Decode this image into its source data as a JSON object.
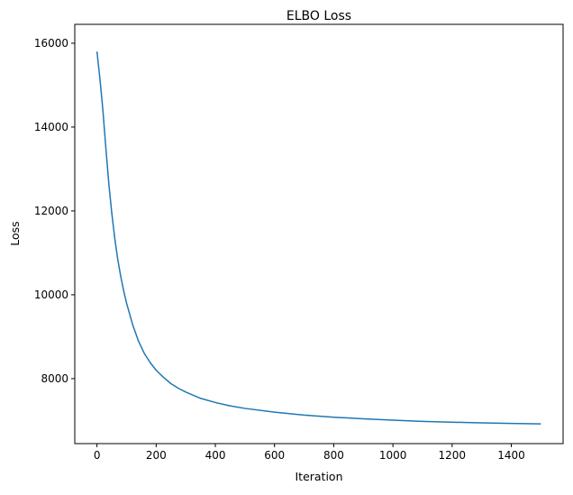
{
  "chart_data": {
    "type": "line",
    "title": "ELBO Loss",
    "xlabel": "Iteration",
    "ylabel": "Loss",
    "xlim": [
      -75,
      1575
    ],
    "ylim": [
      6450,
      16450
    ],
    "xticks": [
      0,
      200,
      400,
      600,
      800,
      1000,
      1200,
      1400
    ],
    "yticks": [
      8000,
      10000,
      12000,
      14000,
      16000
    ],
    "grid": false,
    "series": [
      {
        "color": "#1f77b4",
        "x": [
          0,
          10,
          20,
          30,
          40,
          50,
          60,
          70,
          80,
          90,
          100,
          120,
          140,
          160,
          180,
          200,
          225,
          250,
          275,
          300,
          350,
          400,
          450,
          500,
          600,
          700,
          800,
          900,
          1000,
          1100,
          1200,
          1300,
          1400,
          1500
        ],
        "y": [
          15800,
          15150,
          14400,
          13500,
          12650,
          11950,
          11350,
          10850,
          10450,
          10100,
          9800,
          9300,
          8900,
          8600,
          8380,
          8200,
          8030,
          7880,
          7770,
          7680,
          7530,
          7430,
          7350,
          7290,
          7200,
          7130,
          7080,
          7040,
          7010,
          6980,
          6960,
          6945,
          6930,
          6920
        ]
      }
    ]
  }
}
